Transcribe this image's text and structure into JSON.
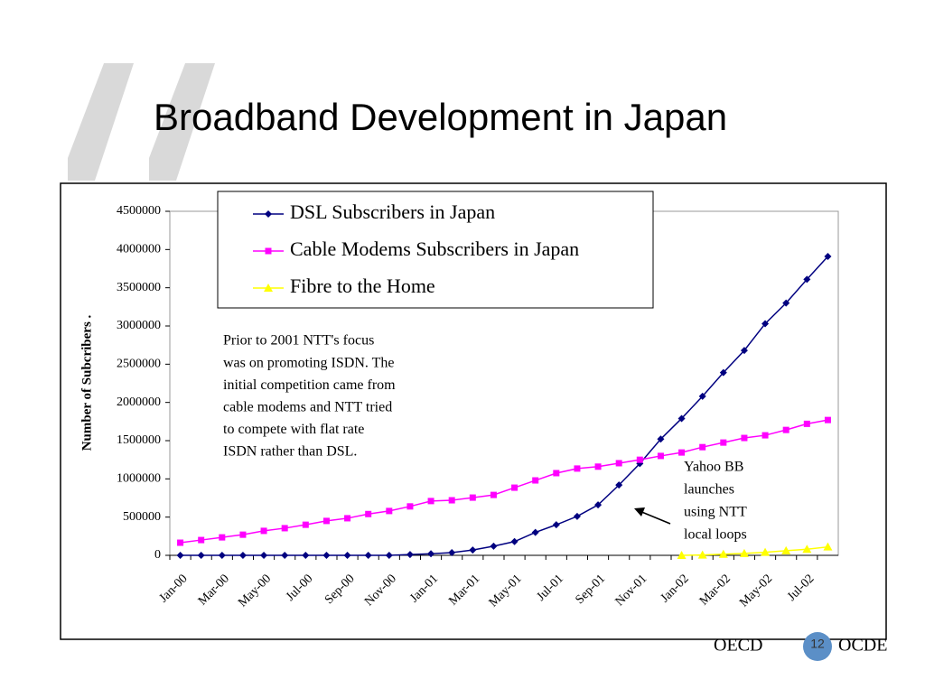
{
  "slide": {
    "title": "Broadband Development in Japan",
    "page_number": "12",
    "logo_left": "OECD",
    "logo_right": "OCDE"
  },
  "chart_data": {
    "type": "line",
    "y_label": "Number of Subcribers .",
    "categories": [
      "Jan-00",
      null,
      "Mar-00",
      null,
      "May-00",
      null,
      "Jul-00",
      null,
      "Sep-00",
      null,
      "Nov-00",
      null,
      "Jan-01",
      null,
      "Mar-01",
      null,
      "May-01",
      null,
      "Jul-01",
      null,
      "Sep-01",
      null,
      "Nov-01",
      null,
      "Jan-02",
      null,
      "Mar-02",
      null,
      "May-02",
      null,
      "Jul-02",
      null
    ],
    "series": [
      {
        "name": "DSL Subscribers in Japan",
        "color": "#000080",
        "marker": "diamond",
        "values": [
          0,
          0,
          0,
          0,
          0,
          0,
          0,
          0,
          0,
          0,
          0,
          10000,
          20000,
          35000,
          70000,
          120000,
          180000,
          300000,
          400000,
          510000,
          660000,
          920000,
          1200000,
          1520000,
          1790000,
          2080000,
          2390000,
          2680000,
          3030000,
          3300000,
          3610000,
          3910000
        ]
      },
      {
        "name": "Cable Modems Subscribers in Japan",
        "color": "#ff00ff",
        "marker": "square",
        "values": [
          165000,
          200000,
          235000,
          270000,
          320000,
          355000,
          400000,
          450000,
          485000,
          540000,
          580000,
          640000,
          710000,
          720000,
          755000,
          790000,
          885000,
          980000,
          1075000,
          1135000,
          1160000,
          1205000,
          1250000,
          1300000,
          1345000,
          1415000,
          1475000,
          1535000,
          1570000,
          1640000,
          1720000,
          1770000
        ]
      },
      {
        "name": "Fibre to the Home",
        "color": "#ffff00",
        "marker": "triangle",
        "values": [
          null,
          null,
          null,
          null,
          null,
          null,
          null,
          null,
          null,
          null,
          null,
          null,
          null,
          null,
          null,
          null,
          null,
          null,
          null,
          null,
          null,
          null,
          null,
          null,
          0,
          5000,
          15000,
          25000,
          40000,
          60000,
          80000,
          110000
        ]
      }
    ],
    "ylim": [
      0,
      4500000
    ],
    "yticks": [
      0,
      500000,
      1000000,
      1500000,
      2000000,
      2500000,
      3000000,
      3500000,
      4000000,
      4500000
    ],
    "annotations": [
      {
        "lines": [
          "Prior to 2001 NTT's focus",
          "was on promoting ISDN. The",
          "initial competition came from",
          "cable modems and NTT tried",
          "to compete with flat rate",
          "ISDN rather than DSL."
        ]
      },
      {
        "lines": [
          "Yahoo BB",
          "launches",
          "using NTT",
          "local loops"
        ]
      }
    ]
  }
}
